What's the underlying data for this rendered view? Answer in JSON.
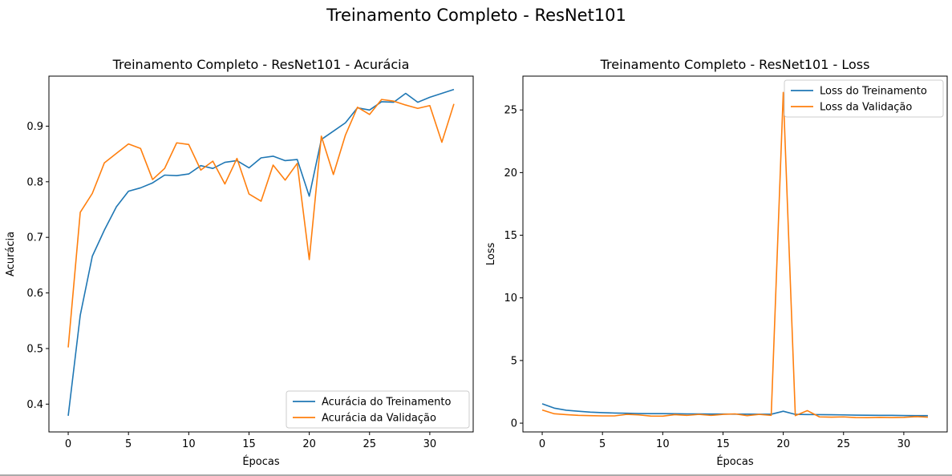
{
  "suptitle": "Treinamento Completo - ResNet101",
  "colors": {
    "train": "#1f77b4",
    "val": "#ff7f0e"
  },
  "chart_data": [
    {
      "type": "line",
      "title": "Treinamento Completo - ResNet101 - Acurácia",
      "xlabel": "Épocas",
      "ylabel": "Acurácia",
      "xlim": [
        -1.6,
        33.6
      ],
      "ylim": [
        0.35,
        0.99
      ],
      "xticks": [
        0,
        5,
        10,
        15,
        20,
        25,
        30
      ],
      "yticks": [
        0.4,
        0.5,
        0.6,
        0.7,
        0.8,
        0.9
      ],
      "ytick_labels": [
        "0.4",
        "0.5",
        "0.6",
        "0.7",
        "0.8",
        "0.9"
      ],
      "legend_loc": "lower right",
      "x": [
        0,
        1,
        2,
        3,
        4,
        5,
        6,
        7,
        8,
        9,
        10,
        11,
        12,
        13,
        14,
        15,
        16,
        17,
        18,
        19,
        20,
        21,
        22,
        23,
        24,
        25,
        26,
        27,
        28,
        29,
        30,
        31,
        32
      ],
      "series": [
        {
          "name": "Acurácia do Treinamento",
          "color": "#1f77b4",
          "values": [
            0.379,
            0.56,
            0.666,
            0.713,
            0.755,
            0.783,
            0.789,
            0.798,
            0.812,
            0.811,
            0.814,
            0.829,
            0.824,
            0.835,
            0.838,
            0.825,
            0.843,
            0.846,
            0.838,
            0.84,
            0.774,
            0.876,
            0.891,
            0.906,
            0.933,
            0.929,
            0.944,
            0.943,
            0.959,
            0.943,
            0.952,
            0.959,
            0.966
          ]
        },
        {
          "name": "Acurácia da Validação",
          "color": "#ff7f0e",
          "values": [
            0.502,
            0.745,
            0.779,
            0.834,
            0.851,
            0.868,
            0.86,
            0.804,
            0.824,
            0.87,
            0.867,
            0.821,
            0.837,
            0.796,
            0.842,
            0.778,
            0.765,
            0.83,
            0.803,
            0.833,
            0.66,
            0.882,
            0.813,
            0.884,
            0.934,
            0.921,
            0.948,
            0.945,
            0.938,
            0.932,
            0.937,
            0.871,
            0.94
          ]
        }
      ]
    },
    {
      "type": "line",
      "title": "Treinamento Completo - ResNet101 - Loss",
      "xlabel": "Épocas",
      "ylabel": "Loss",
      "xlim": [
        -1.6,
        33.6
      ],
      "ylim": [
        -0.7,
        27.7
      ],
      "xticks": [
        0,
        5,
        10,
        15,
        20,
        25,
        30
      ],
      "yticks": [
        0,
        5,
        10,
        15,
        20,
        25
      ],
      "ytick_labels": [
        "0",
        "5",
        "10",
        "15",
        "20",
        "25"
      ],
      "legend_loc": "upper right",
      "x": [
        0,
        1,
        2,
        3,
        4,
        5,
        6,
        7,
        8,
        9,
        10,
        11,
        12,
        13,
        14,
        15,
        16,
        17,
        18,
        19,
        20,
        21,
        22,
        23,
        24,
        25,
        26,
        27,
        28,
        29,
        30,
        31,
        32
      ],
      "series": [
        {
          "name": "Loss do Treinamento",
          "color": "#1f77b4",
          "values": [
            1.55,
            1.2,
            1.03,
            0.95,
            0.88,
            0.84,
            0.81,
            0.79,
            0.77,
            0.76,
            0.76,
            0.75,
            0.74,
            0.74,
            0.73,
            0.73,
            0.72,
            0.72,
            0.71,
            0.71,
            0.95,
            0.7,
            0.69,
            0.68,
            0.67,
            0.66,
            0.64,
            0.63,
            0.62,
            0.62,
            0.61,
            0.6,
            0.6
          ]
        },
        {
          "name": "Loss da Validação",
          "color": "#ff7f0e",
          "values": [
            1.05,
            0.75,
            0.68,
            0.62,
            0.6,
            0.58,
            0.58,
            0.7,
            0.66,
            0.57,
            0.56,
            0.68,
            0.62,
            0.7,
            0.62,
            0.7,
            0.74,
            0.6,
            0.7,
            0.62,
            26.4,
            0.6,
            1.0,
            0.5,
            0.48,
            0.5,
            0.45,
            0.44,
            0.46,
            0.45,
            0.46,
            0.52,
            0.48
          ]
        }
      ]
    }
  ]
}
